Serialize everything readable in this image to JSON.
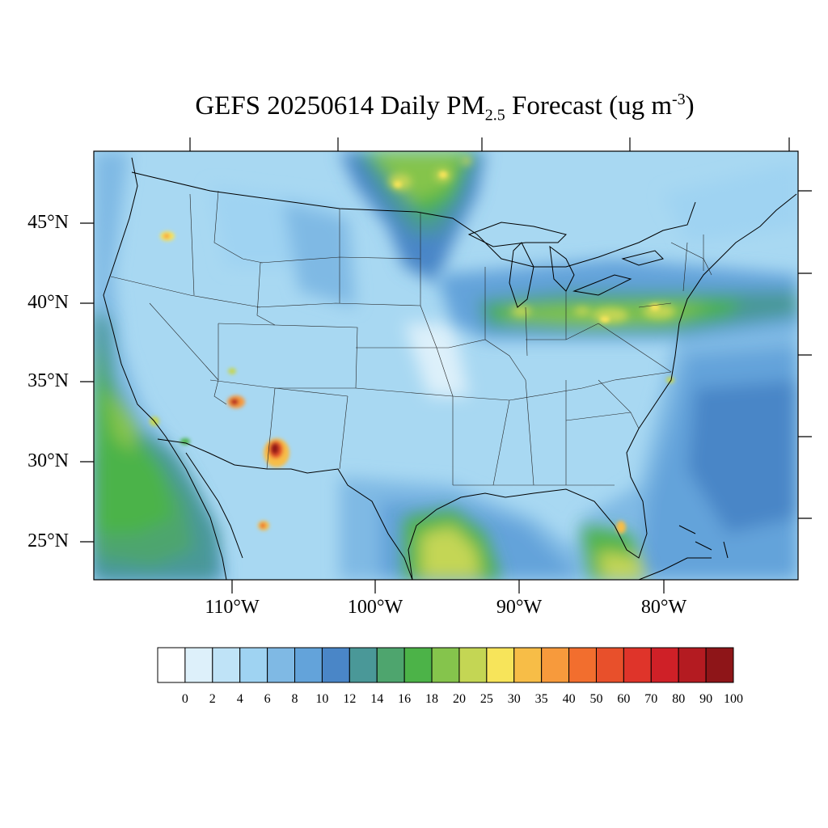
{
  "title": {
    "main": "GEFS 20250614 Daily PM",
    "subscript": "2.5",
    "suffix": " Forecast (ug m",
    "superscript": "-3",
    "close": ")"
  },
  "map": {
    "lon_range": [
      -128,
      -59
    ],
    "lat_range": [
      22.5,
      49.5
    ],
    "lat_labels": [
      "45°N",
      "40°N",
      "35°N",
      "30°N",
      "25°N"
    ],
    "lon_labels": [
      "110°W",
      "100°W",
      "90°W",
      "80°W"
    ],
    "colors": {
      "background_mid": "#a8d8f2",
      "ocean_deep": "#5a9ad0"
    }
  },
  "legend": {
    "levels": [
      "0",
      "2",
      "4",
      "6",
      "8",
      "10",
      "12",
      "14",
      "16",
      "18",
      "20",
      "25",
      "30",
      "35",
      "40",
      "50",
      "60",
      "70",
      "80",
      "90",
      "100"
    ],
    "colors": [
      "#ffffff",
      "#ddf0fa",
      "#bfe3f7",
      "#9fd3f2",
      "#7fb9e4",
      "#63a3da",
      "#4a86c7",
      "#4a9898",
      "#4ea56e",
      "#4cb348",
      "#85c44c",
      "#c4d654",
      "#f7e45a",
      "#f7bd47",
      "#f79a3c",
      "#f26e2e",
      "#e8502b",
      "#df342a",
      "#cf2027",
      "#b41b21",
      "#8e1518"
    ]
  }
}
